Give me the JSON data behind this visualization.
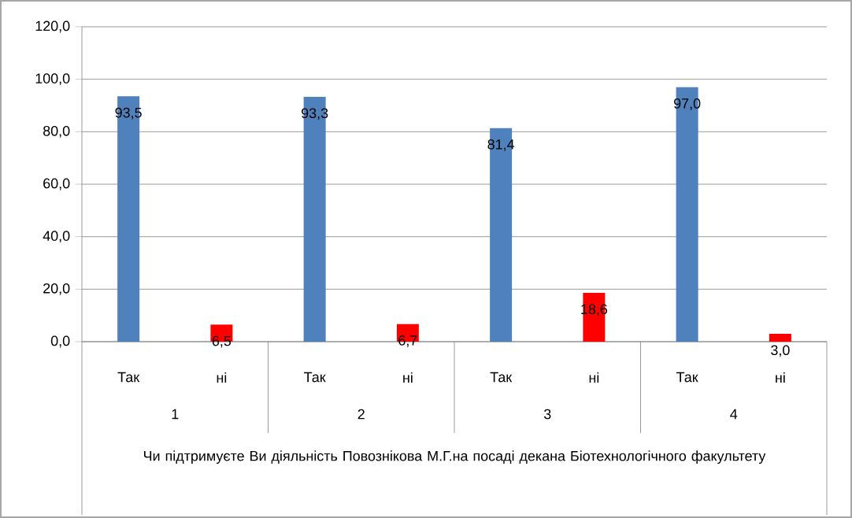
{
  "chart_data": {
    "type": "bar",
    "categories": [
      "Так",
      "ні",
      "Так",
      "ні",
      "Так",
      "ні",
      "Так",
      "ні"
    ],
    "values": [
      93.5,
      6.5,
      93.3,
      6.7,
      81.4,
      18.6,
      97.0,
      3.0
    ],
    "colors": [
      "#4f81bd",
      "#ff0000",
      "#4f81bd",
      "#ff0000",
      "#4f81bd",
      "#ff0000",
      "#4f81bd",
      "#ff0000"
    ],
    "value_labels": [
      "93,5",
      "6,5",
      "93,3",
      "6,7",
      "81,4",
      "18,6",
      "97,0",
      "3,0"
    ],
    "annotations": [
      "1",
      "2",
      "3",
      "4"
    ],
    "xlabel": "Чи підтримуєте Ви діяльність Повознікова М.Г.на посаді декана Біотехнологічного факультету",
    "ylim": [
      0,
      120
    ],
    "yticks": [
      {
        "value": 0,
        "label": "0,0"
      },
      {
        "value": 20,
        "label": "20,0"
      },
      {
        "value": 40,
        "label": "40,0"
      },
      {
        "value": 60,
        "label": "60,0"
      },
      {
        "value": 80,
        "label": "80,0"
      },
      {
        "value": 100,
        "label": "100,0"
      },
      {
        "value": 120,
        "label": "120,0"
      }
    ],
    "grid": "y"
  }
}
